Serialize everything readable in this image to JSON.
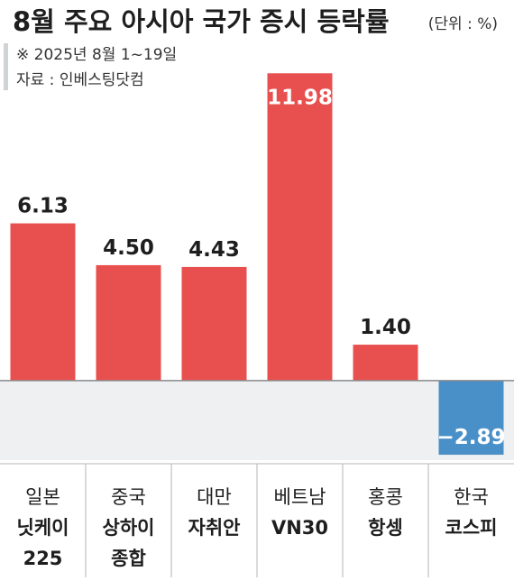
{
  "chart_data": {
    "type": "bar",
    "title": "8월 주요 아시아 국가 증시 등락률",
    "unit_note": "(단위 : %)",
    "period_note": "※ 2025년 8월 1~19일",
    "source_note": "자료 : 인베스팅닷컴",
    "categories": [
      [
        "일본",
        "닛케이",
        "225"
      ],
      [
        "중국",
        "상하이",
        "종합"
      ],
      [
        "대만",
        "자취안"
      ],
      [
        "베트남",
        "VN30"
      ],
      [
        "홍콩",
        "항셍"
      ],
      [
        "한국",
        "코스피"
      ]
    ],
    "values": [
      6.13,
      4.5,
      4.43,
      11.98,
      1.4,
      -2.89
    ],
    "value_labels": [
      "6.13",
      "4.50",
      "4.43",
      "11.98",
      "1.40",
      "−2.89"
    ],
    "ylim": [
      -3.1,
      12.2
    ],
    "colors": {
      "positive": "#e8504f",
      "negative": "#4a90c8",
      "negative_area": "#eef0f2",
      "baseline": "#8a8a8a",
      "text": "#1e1e1e",
      "subtext": "#333333",
      "accent_bar": "#cfd3d6"
    }
  }
}
